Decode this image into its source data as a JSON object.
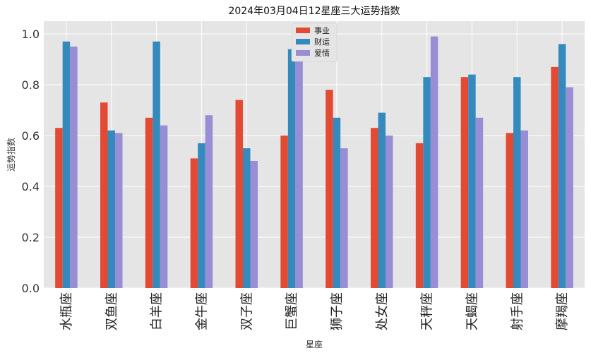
{
  "chart_data": {
    "type": "bar",
    "title": "2024年03月04日12星座三大运势指数",
    "xlabel": "星座",
    "ylabel": "运势指数",
    "ylim": [
      0,
      1.05
    ],
    "yticks": [
      0.0,
      0.2,
      0.4,
      0.6,
      0.8,
      1.0
    ],
    "ytick_labels": [
      "0.0",
      "0.2",
      "0.4",
      "0.6",
      "0.8",
      "1.0"
    ],
    "categories": [
      "水瓶座",
      "双鱼座",
      "白羊座",
      "金牛座",
      "双子座",
      "巨蟹座",
      "狮子座",
      "处女座",
      "天秤座",
      "天蝎座",
      "射手座",
      "摩羯座"
    ],
    "series": [
      {
        "name": "事业",
        "color": "#E24A33",
        "values": [
          0.63,
          0.73,
          0.67,
          0.51,
          0.74,
          0.6,
          0.78,
          0.63,
          0.57,
          0.83,
          0.61,
          0.87
        ]
      },
      {
        "name": "财运",
        "color": "#348ABD",
        "values": [
          0.97,
          0.62,
          0.97,
          0.57,
          0.55,
          0.94,
          0.67,
          0.69,
          0.83,
          0.84,
          0.83,
          0.96
        ]
      },
      {
        "name": "爱情",
        "color": "#988ED5",
        "values": [
          0.95,
          0.61,
          0.64,
          0.68,
          0.5,
          0.92,
          0.55,
          0.6,
          0.99,
          0.67,
          0.62,
          0.79
        ]
      }
    ],
    "legend_position": "top-center",
    "grid": true,
    "background": "#E5E5E5"
  }
}
